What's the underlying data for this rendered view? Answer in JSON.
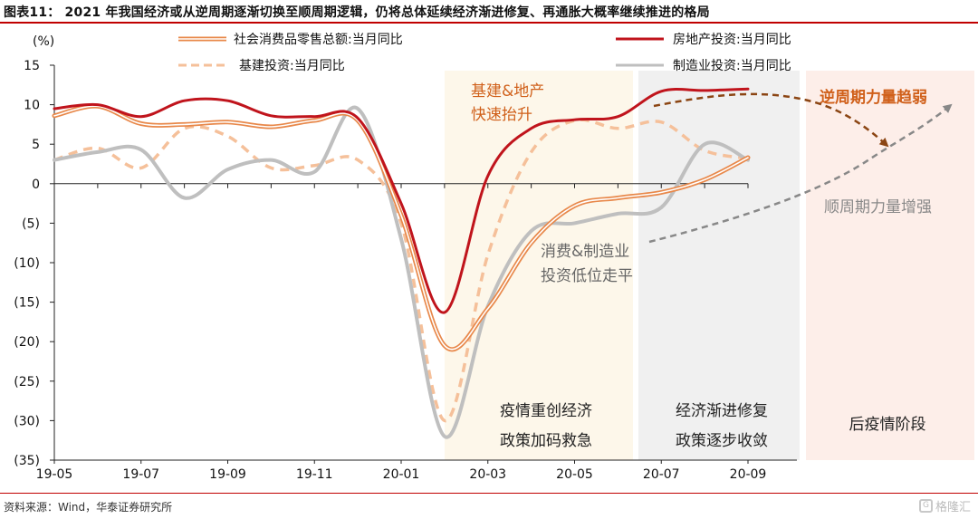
{
  "title": "图表11：  2021 年我国经济或从逆周期逐渐切换至顺周期逻辑，仍将总体延续经济渐进修复、再通胀大概率继续推进的格局",
  "source": "资料来源：Wind，华泰证券研究所",
  "watermark": "格隆汇",
  "watermark_logo": "G",
  "chart_data": {
    "type": "line",
    "ylabel": "(%)",
    "ylim": [
      -35,
      15
    ],
    "yticks": [
      15,
      10,
      5,
      0,
      -5,
      -10,
      -15,
      -20,
      -25,
      -30,
      -35
    ],
    "ytick_labels": [
      "15",
      "10",
      "5",
      "0",
      "(5)",
      "(10)",
      "(15)",
      "(20)",
      "(25)",
      "(30)",
      "(35)"
    ],
    "x": [
      "19-05",
      "19-06",
      "19-07",
      "19-08",
      "19-09",
      "19-10",
      "19-11",
      "19-12",
      "20-01",
      "20-02",
      "20-03",
      "20-04",
      "20-05",
      "20-06",
      "20-07",
      "20-08",
      "20-09"
    ],
    "xtick_labels": [
      "19-05",
      "19-07",
      "19-09",
      "19-11",
      "20-01",
      "20-03",
      "20-05",
      "20-07",
      "20-09"
    ],
    "xtick_indices": [
      0,
      2,
      4,
      6,
      8,
      10,
      12,
      14,
      16
    ],
    "legend": {
      "placement": "top"
    },
    "series": [
      {
        "name": "社会消费品零售总额:当月同比",
        "color": "#e8884a",
        "style": "double",
        "values": [
          8.6,
          9.8,
          7.6,
          7.5,
          7.8,
          7.2,
          8.0,
          8.0,
          -4.0,
          -20.5,
          -15.8,
          -7.5,
          -2.8,
          -1.8,
          -1.1,
          0.5,
          3.3
        ]
      },
      {
        "name": "房地产投资:当月同比",
        "color": "#c0141c",
        "style": "solid",
        "values": [
          9.5,
          10.0,
          8.5,
          10.5,
          10.5,
          8.6,
          8.5,
          8.3,
          -2.5,
          -16.3,
          1.0,
          7.0,
          8.1,
          8.5,
          11.7,
          11.8,
          12.0
        ]
      },
      {
        "name": "基建投资:当月同比",
        "color": "#f5c09a",
        "style": "dashed",
        "values": [
          3.0,
          4.5,
          2.0,
          7.0,
          6.0,
          2.0,
          2.3,
          3.0,
          -5.0,
          -30.0,
          -9.0,
          4.0,
          8.0,
          7.0,
          7.8,
          4.2,
          3.2
        ]
      },
      {
        "name": "制造业投资:当月同比",
        "color": "#bfbfbf",
        "style": "solid",
        "values": [
          3.0,
          4.0,
          4.3,
          -1.8,
          1.8,
          3.0,
          1.5,
          9.5,
          -7.0,
          -32.0,
          -15.5,
          -6.0,
          -5.0,
          -3.8,
          -3.0,
          5.0,
          3.0
        ]
      }
    ],
    "regions": [
      {
        "label_lines": [
          "疫情重创经济",
          "政策加码救急"
        ],
        "color": "#fdf6e9"
      },
      {
        "label_lines": [
          "经济渐进修复",
          "政策逐步收敛"
        ],
        "color": "#f0f0f0"
      },
      {
        "label_lines": [
          "后疫情阶段"
        ],
        "color": "#fdeee9"
      }
    ],
    "annotations": [
      {
        "id": "infra-property",
        "lines": [
          "基建&地产",
          "快速抬升"
        ],
        "color": "#d0601a"
      },
      {
        "id": "consumption-mfg",
        "lines": [
          "消费&制造业",
          "投资低位走平"
        ],
        "color": "#666666"
      },
      {
        "id": "countercyclical",
        "lines": [
          "逆周期力量趋弱"
        ],
        "color": "#d0601a"
      },
      {
        "id": "procyclical",
        "lines": [
          "顺周期力量增强"
        ],
        "color": "#888888"
      }
    ]
  }
}
